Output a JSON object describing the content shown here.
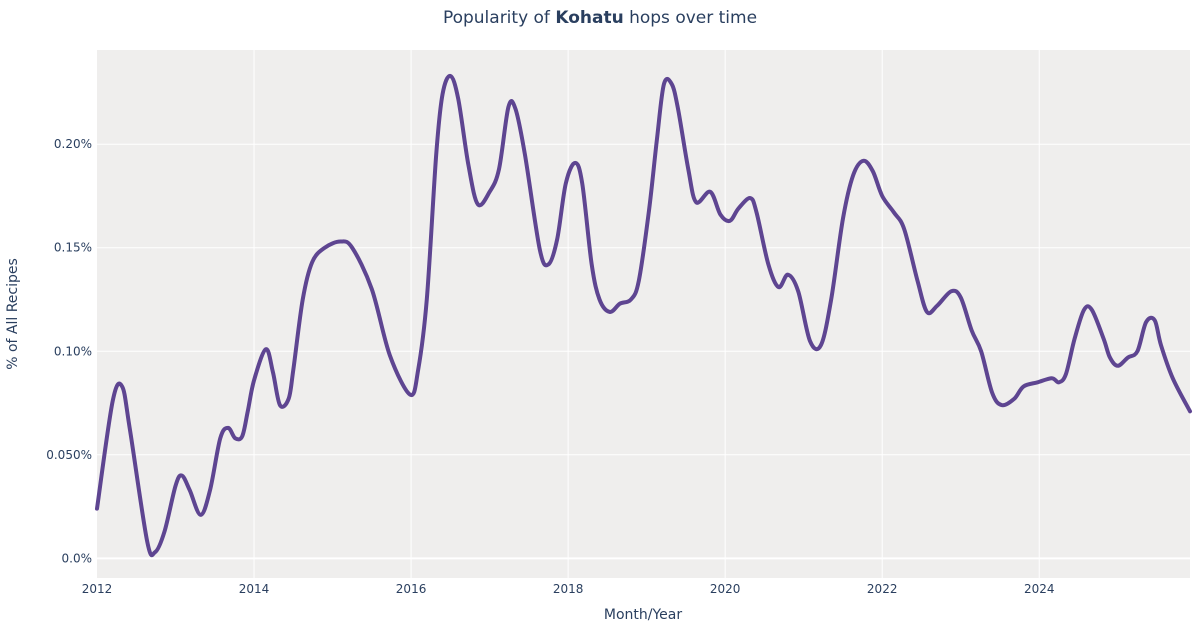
{
  "chart_data": {
    "type": "line",
    "title_prefix": "Popularity of ",
    "title_bold": "Kohatu",
    "title_suffix": " hops over time",
    "xlabel": "Month/Year",
    "ylabel": "% of All Recipes",
    "xlim": [
      2012.0,
      2025.92
    ],
    "ylim": [
      -0.0095,
      0.2455
    ],
    "x_ticks": [
      2012,
      2014,
      2016,
      2018,
      2020,
      2022,
      2024
    ],
    "x_tick_labels": [
      "2012",
      "2014",
      "2016",
      "2018",
      "2020",
      "2022",
      "2024"
    ],
    "y_ticks": [
      0,
      0.05,
      0.1,
      0.15,
      0.2
    ],
    "y_tick_labels": [
      "0.0%",
      "0.050%",
      "0.10%",
      "0.15%",
      "0.20%"
    ],
    "grid": true,
    "line_color": "#5e4591",
    "plot_bg": "#efeeed",
    "series": [
      {
        "name": "Kohatu",
        "x": [
          2012.0,
          2012.2,
          2012.32,
          2012.42,
          2012.64,
          2012.74,
          2012.86,
          2013.0,
          2013.08,
          2013.18,
          2013.32,
          2013.44,
          2013.57,
          2013.67,
          2013.76,
          2013.85,
          2013.92,
          2014.0,
          2014.15,
          2014.24,
          2014.33,
          2014.44,
          2014.5,
          2014.62,
          2014.74,
          2014.9,
          2015.1,
          2015.25,
          2015.5,
          2015.73,
          2015.99,
          2016.09,
          2016.2,
          2016.32,
          2016.4,
          2016.5,
          2016.6,
          2016.73,
          2016.85,
          2017.0,
          2017.12,
          2017.24,
          2017.33,
          2017.45,
          2017.64,
          2017.75,
          2017.86,
          2017.97,
          2018.09,
          2018.18,
          2018.3,
          2018.4,
          2018.53,
          2018.66,
          2018.8,
          2018.9,
          2019.03,
          2019.13,
          2019.22,
          2019.32,
          2019.4,
          2019.53,
          2019.63,
          2019.81,
          2019.94,
          2020.06,
          2020.17,
          2020.32,
          2020.4,
          2020.55,
          2020.68,
          2020.8,
          2020.93,
          2021.08,
          2021.22,
          2021.35,
          2021.5,
          2021.63,
          2021.76,
          2021.88,
          2022.0,
          2022.15,
          2022.28,
          2022.45,
          2022.57,
          2022.7,
          2022.88,
          2023.0,
          2023.14,
          2023.26,
          2023.4,
          2023.52,
          2023.68,
          2023.8,
          2023.98,
          2024.16,
          2024.25,
          2024.34,
          2024.45,
          2024.57,
          2024.67,
          2024.82,
          2024.9,
          2025.0,
          2025.13,
          2025.25,
          2025.36,
          2025.47,
          2025.55,
          2025.7,
          2025.92
        ],
        "y": [
          0.024,
          0.076,
          0.083,
          0.062,
          0.008,
          0.003,
          0.013,
          0.035,
          0.04,
          0.033,
          0.021,
          0.033,
          0.058,
          0.063,
          0.058,
          0.059,
          0.071,
          0.086,
          0.101,
          0.09,
          0.074,
          0.077,
          0.091,
          0.125,
          0.143,
          0.15,
          0.153,
          0.15,
          0.13,
          0.098,
          0.079,
          0.091,
          0.125,
          0.195,
          0.224,
          0.233,
          0.222,
          0.19,
          0.171,
          0.177,
          0.188,
          0.218,
          0.217,
          0.195,
          0.149,
          0.142,
          0.154,
          0.181,
          0.191,
          0.181,
          0.142,
          0.125,
          0.119,
          0.123,
          0.125,
          0.134,
          0.168,
          0.202,
          0.229,
          0.229,
          0.217,
          0.188,
          0.172,
          0.177,
          0.166,
          0.163,
          0.169,
          0.174,
          0.167,
          0.142,
          0.131,
          0.137,
          0.129,
          0.105,
          0.103,
          0.125,
          0.164,
          0.185,
          0.192,
          0.187,
          0.175,
          0.167,
          0.159,
          0.134,
          0.119,
          0.122,
          0.129,
          0.126,
          0.11,
          0.1,
          0.08,
          0.074,
          0.077,
          0.083,
          0.085,
          0.087,
          0.085,
          0.089,
          0.106,
          0.12,
          0.12,
          0.106,
          0.097,
          0.093,
          0.097,
          0.1,
          0.114,
          0.115,
          0.103,
          0.087,
          0.071
        ]
      }
    ]
  }
}
